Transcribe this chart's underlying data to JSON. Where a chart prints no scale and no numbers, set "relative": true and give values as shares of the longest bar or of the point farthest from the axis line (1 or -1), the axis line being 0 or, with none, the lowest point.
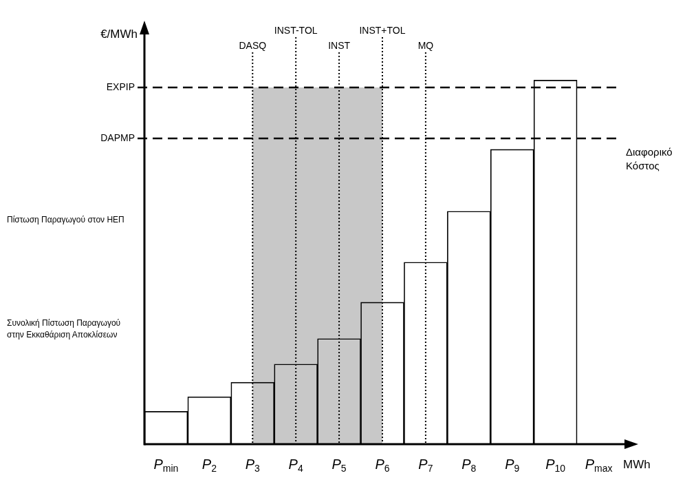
{
  "chart_data": {
    "type": "bar",
    "relative": true,
    "xlabel": "MWh",
    "ylabel": "€/MWh",
    "categories": [
      "P$_{min}$",
      "P$_{2}$",
      "P$_{3}$",
      "P$_{4}$",
      "P$_{5}$",
      "P$_{6}$",
      "P$_{7}$",
      "P$_{8}$",
      "P$_{9}$",
      "P$_{10}$",
      "P$_{max}$"
    ],
    "values": [
      0.09,
      0.13,
      0.17,
      0.22,
      0.29,
      0.39,
      0.5,
      0.64,
      0.81,
      1.0,
      null
    ],
    "color": "#000000",
    "ref_lines": [
      {
        "axis": "y",
        "value": 0.98,
        "label": "EXPIP",
        "line_style": "dashed"
      },
      {
        "axis": "y",
        "value": 0.84,
        "label": "DAPMP",
        "line_style": "dashed"
      },
      {
        "axis": "x",
        "value": "P$_{3}$",
        "label": "DASQ",
        "line_style": "dotted"
      },
      {
        "axis": "x",
        "value": "P$_{4}$",
        "label": "INST-TOL",
        "line_style": "dotted"
      },
      {
        "axis": "x",
        "value": "P$_{5}$",
        "label": "INST",
        "line_style": "dotted"
      },
      {
        "axis": "x",
        "value": "P$_{6}$",
        "label": "INST+TOL",
        "line_style": "dotted"
      },
      {
        "axis": "x",
        "value": "P$_{7}$",
        "label": "MQ",
        "line_style": "dotted"
      }
    ],
    "bands": [
      {
        "axis": "x",
        "from": "P$_{3}$",
        "to": "P$_{6}$",
        "color": "#c8c8c8"
      }
    ],
    "annotations": [
      "Διαφορικό Κόστος",
      "Πίστωση Παραγωγού στον ΗΕΠ",
      "Συνολική Πίστωση Παραγωγού στην Εκκαθάριση Αποκλίσεων"
    ]
  }
}
